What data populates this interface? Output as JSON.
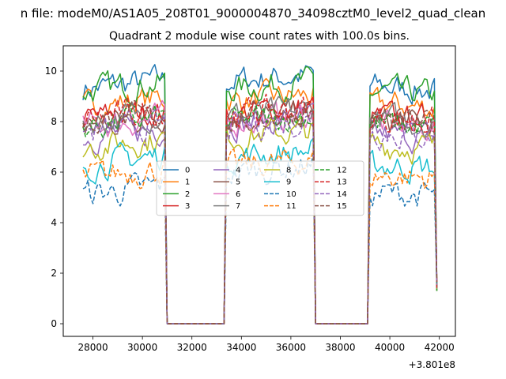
{
  "suptitle": "n file: modeM0/AS1A05_208T01_9000004870_34098cztM0_level2_quad_clean",
  "chart_data": {
    "type": "line",
    "title": "Quadrant 2 module wise count rates with 100.0s bins.",
    "xlabel": "",
    "ylabel": "",
    "x_offset_label": "+3.801e8",
    "xlim": [
      26800,
      42650
    ],
    "ylim": [
      -0.5,
      11.0
    ],
    "xticks": [
      28000,
      30000,
      32000,
      34000,
      36000,
      38000,
      40000,
      42000
    ],
    "xtick_labels": [
      "28000",
      "30000",
      "32000",
      "34000",
      "36000",
      "38000",
      "40000",
      "42000"
    ],
    "yticks": [
      0,
      2,
      4,
      6,
      8,
      10
    ],
    "ytick_labels": [
      "0",
      "2",
      "4",
      "6",
      "8",
      "10"
    ],
    "bin_seconds": 100,
    "segments": [
      {
        "start": 27600,
        "end": 30900,
        "ramp_end": 31000,
        "gap_end": 33300
      },
      {
        "start": 33400,
        "end": 36900,
        "ramp_end": 37000,
        "gap_end": 39100
      },
      {
        "start": 39200,
        "end": 41800,
        "ramp_end": 41900,
        "gap_end": null
      }
    ],
    "series": [
      {
        "name": "0",
        "color": "#1f77b4",
        "dash": "solid",
        "levels": [
          9.3,
          9.6,
          9.4
        ]
      },
      {
        "name": "1",
        "color": "#ff7f0e",
        "dash": "solid",
        "levels": [
          8.6,
          8.8,
          8.7
        ]
      },
      {
        "name": "2",
        "color": "#2ca02c",
        "dash": "solid",
        "levels": [
          9.2,
          9.3,
          9.2
        ]
      },
      {
        "name": "3",
        "color": "#d62728",
        "dash": "solid",
        "levels": [
          8.1,
          8.3,
          8.2
        ]
      },
      {
        "name": "4",
        "color": "#9467bd",
        "dash": "solid",
        "levels": [
          7.4,
          7.9,
          7.5
        ]
      },
      {
        "name": "5",
        "color": "#8c564b",
        "dash": "solid",
        "levels": [
          7.9,
          8.1,
          8.0
        ]
      },
      {
        "name": "6",
        "color": "#e377c2",
        "dash": "solid",
        "levels": [
          7.8,
          8.0,
          7.9
        ]
      },
      {
        "name": "7",
        "color": "#7f7f7f",
        "dash": "solid",
        "levels": [
          8.0,
          8.2,
          8.1
        ]
      },
      {
        "name": "8",
        "color": "#bcbd22",
        "dash": "solid",
        "levels": [
          7.0,
          7.4,
          7.1
        ]
      },
      {
        "name": "9",
        "color": "#17becf",
        "dash": "solid",
        "levels": [
          6.3,
          6.6,
          6.3
        ]
      },
      {
        "name": "10",
        "color": "#1f77b4",
        "dash": "dashed",
        "levels": [
          5.1,
          6.0,
          5.2
        ]
      },
      {
        "name": "11",
        "color": "#ff7f0e",
        "dash": "dashed",
        "levels": [
          5.8,
          6.2,
          5.9
        ]
      },
      {
        "name": "12",
        "color": "#2ca02c",
        "dash": "dashed",
        "levels": [
          7.8,
          8.0,
          7.9
        ]
      },
      {
        "name": "13",
        "color": "#d62728",
        "dash": "dashed",
        "levels": [
          8.1,
          8.3,
          8.2
        ]
      },
      {
        "name": "14",
        "color": "#9467bd",
        "dash": "dashed",
        "levels": [
          7.5,
          7.8,
          7.6
        ]
      },
      {
        "name": "15",
        "color": "#8c564b",
        "dash": "dashed",
        "levels": [
          7.9,
          8.1,
          8.0
        ]
      }
    ],
    "legend": {
      "location": "center",
      "columns": 4
    }
  }
}
